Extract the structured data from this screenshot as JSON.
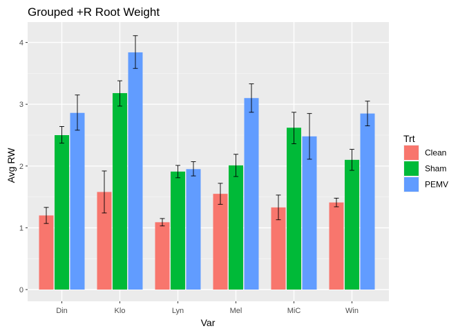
{
  "chart_data": {
    "type": "bar",
    "title": "Grouped +R Root Weight",
    "xlabel": "Var",
    "ylabel": "Avg RW",
    "ylim": [
      0,
      4.3
    ],
    "yticks": [
      "0",
      "1",
      "2",
      "3",
      "4"
    ],
    "categories": [
      "Din",
      "Klo",
      "Lyn",
      "Mel",
      "MiC",
      "Win"
    ],
    "legend": {
      "title": "Trt",
      "position": "right"
    },
    "grid": true,
    "series": [
      {
        "name": "Clean",
        "color": "#F8766D",
        "values": [
          1.2,
          1.58,
          1.09,
          1.55,
          1.33,
          1.41
        ],
        "error_low": [
          1.07,
          1.24,
          1.03,
          1.38,
          1.13,
          1.34
        ],
        "error_high": [
          1.33,
          1.92,
          1.15,
          1.72,
          1.53,
          1.48
        ]
      },
      {
        "name": "Sham",
        "color": "#00BA38",
        "values": [
          2.5,
          3.18,
          1.91,
          2.01,
          2.62,
          2.1
        ],
        "error_low": [
          2.37,
          2.97,
          1.81,
          1.83,
          2.36,
          1.93
        ],
        "error_high": [
          2.64,
          3.38,
          2.01,
          2.19,
          2.87,
          2.27
        ]
      },
      {
        "name": "PEMV",
        "color": "#619CFF",
        "values": [
          2.86,
          3.84,
          1.95,
          3.1,
          2.48,
          2.85
        ],
        "error_low": [
          2.58,
          3.58,
          1.84,
          2.87,
          2.11,
          2.65
        ],
        "error_high": [
          3.15,
          4.11,
          2.07,
          3.33,
          2.85,
          3.05
        ]
      }
    ]
  }
}
